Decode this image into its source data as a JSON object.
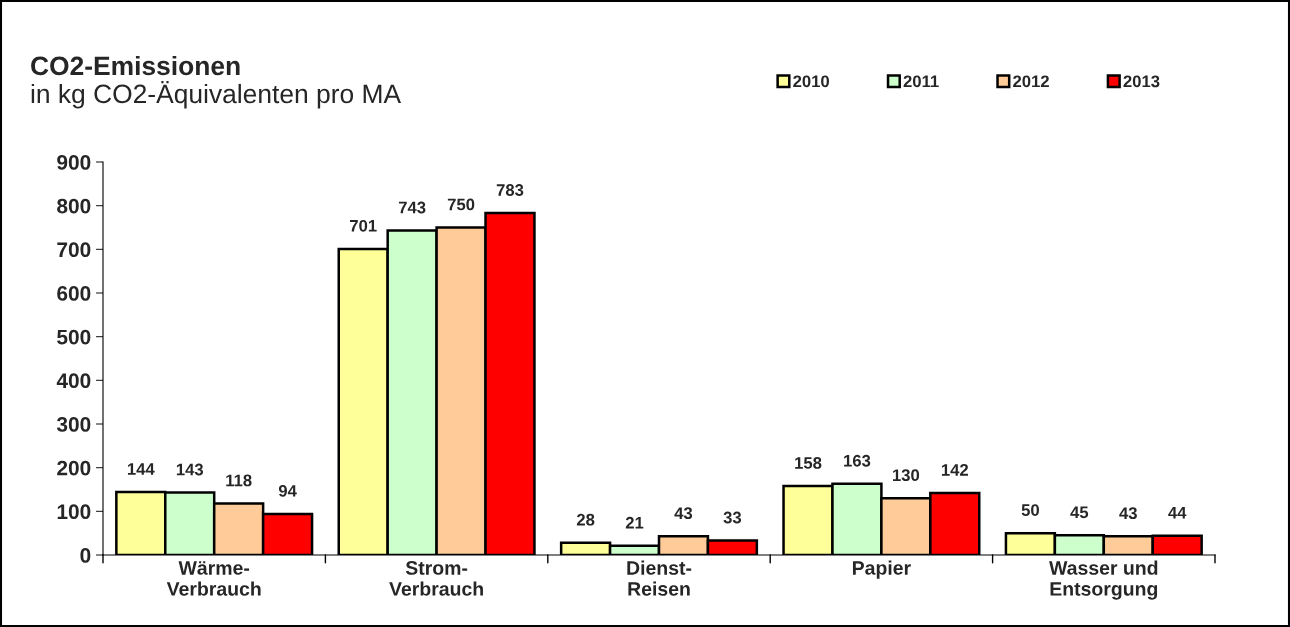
{
  "chart_data": {
    "type": "bar",
    "title": "CO2-Emissionen",
    "subtitle": "in kg CO2-Äquivalenten pro MA",
    "categories": [
      "Wärme-\nVerbrauch",
      "Strom-\nVerbrauch",
      "Dienst-\nReisen",
      "Papier",
      "Wasser und\nEntsorgung"
    ],
    "series": [
      {
        "name": "2010",
        "color": "#ffff99",
        "values": [
          144,
          701,
          28,
          158,
          50
        ]
      },
      {
        "name": "2011",
        "color": "#ccffcc",
        "values": [
          143,
          743,
          21,
          163,
          45
        ]
      },
      {
        "name": "2012",
        "color": "#ffcc99",
        "values": [
          118,
          750,
          43,
          130,
          43
        ]
      },
      {
        "name": "2013",
        "color": "#ff0000",
        "values": [
          94,
          783,
          33,
          142,
          44
        ]
      }
    ],
    "ylim": [
      0,
      900
    ],
    "yticks": [
      0,
      100,
      200,
      300,
      400,
      500,
      600,
      700,
      800,
      900
    ],
    "data_labels": true,
    "legend": "top right",
    "grid": false
  }
}
